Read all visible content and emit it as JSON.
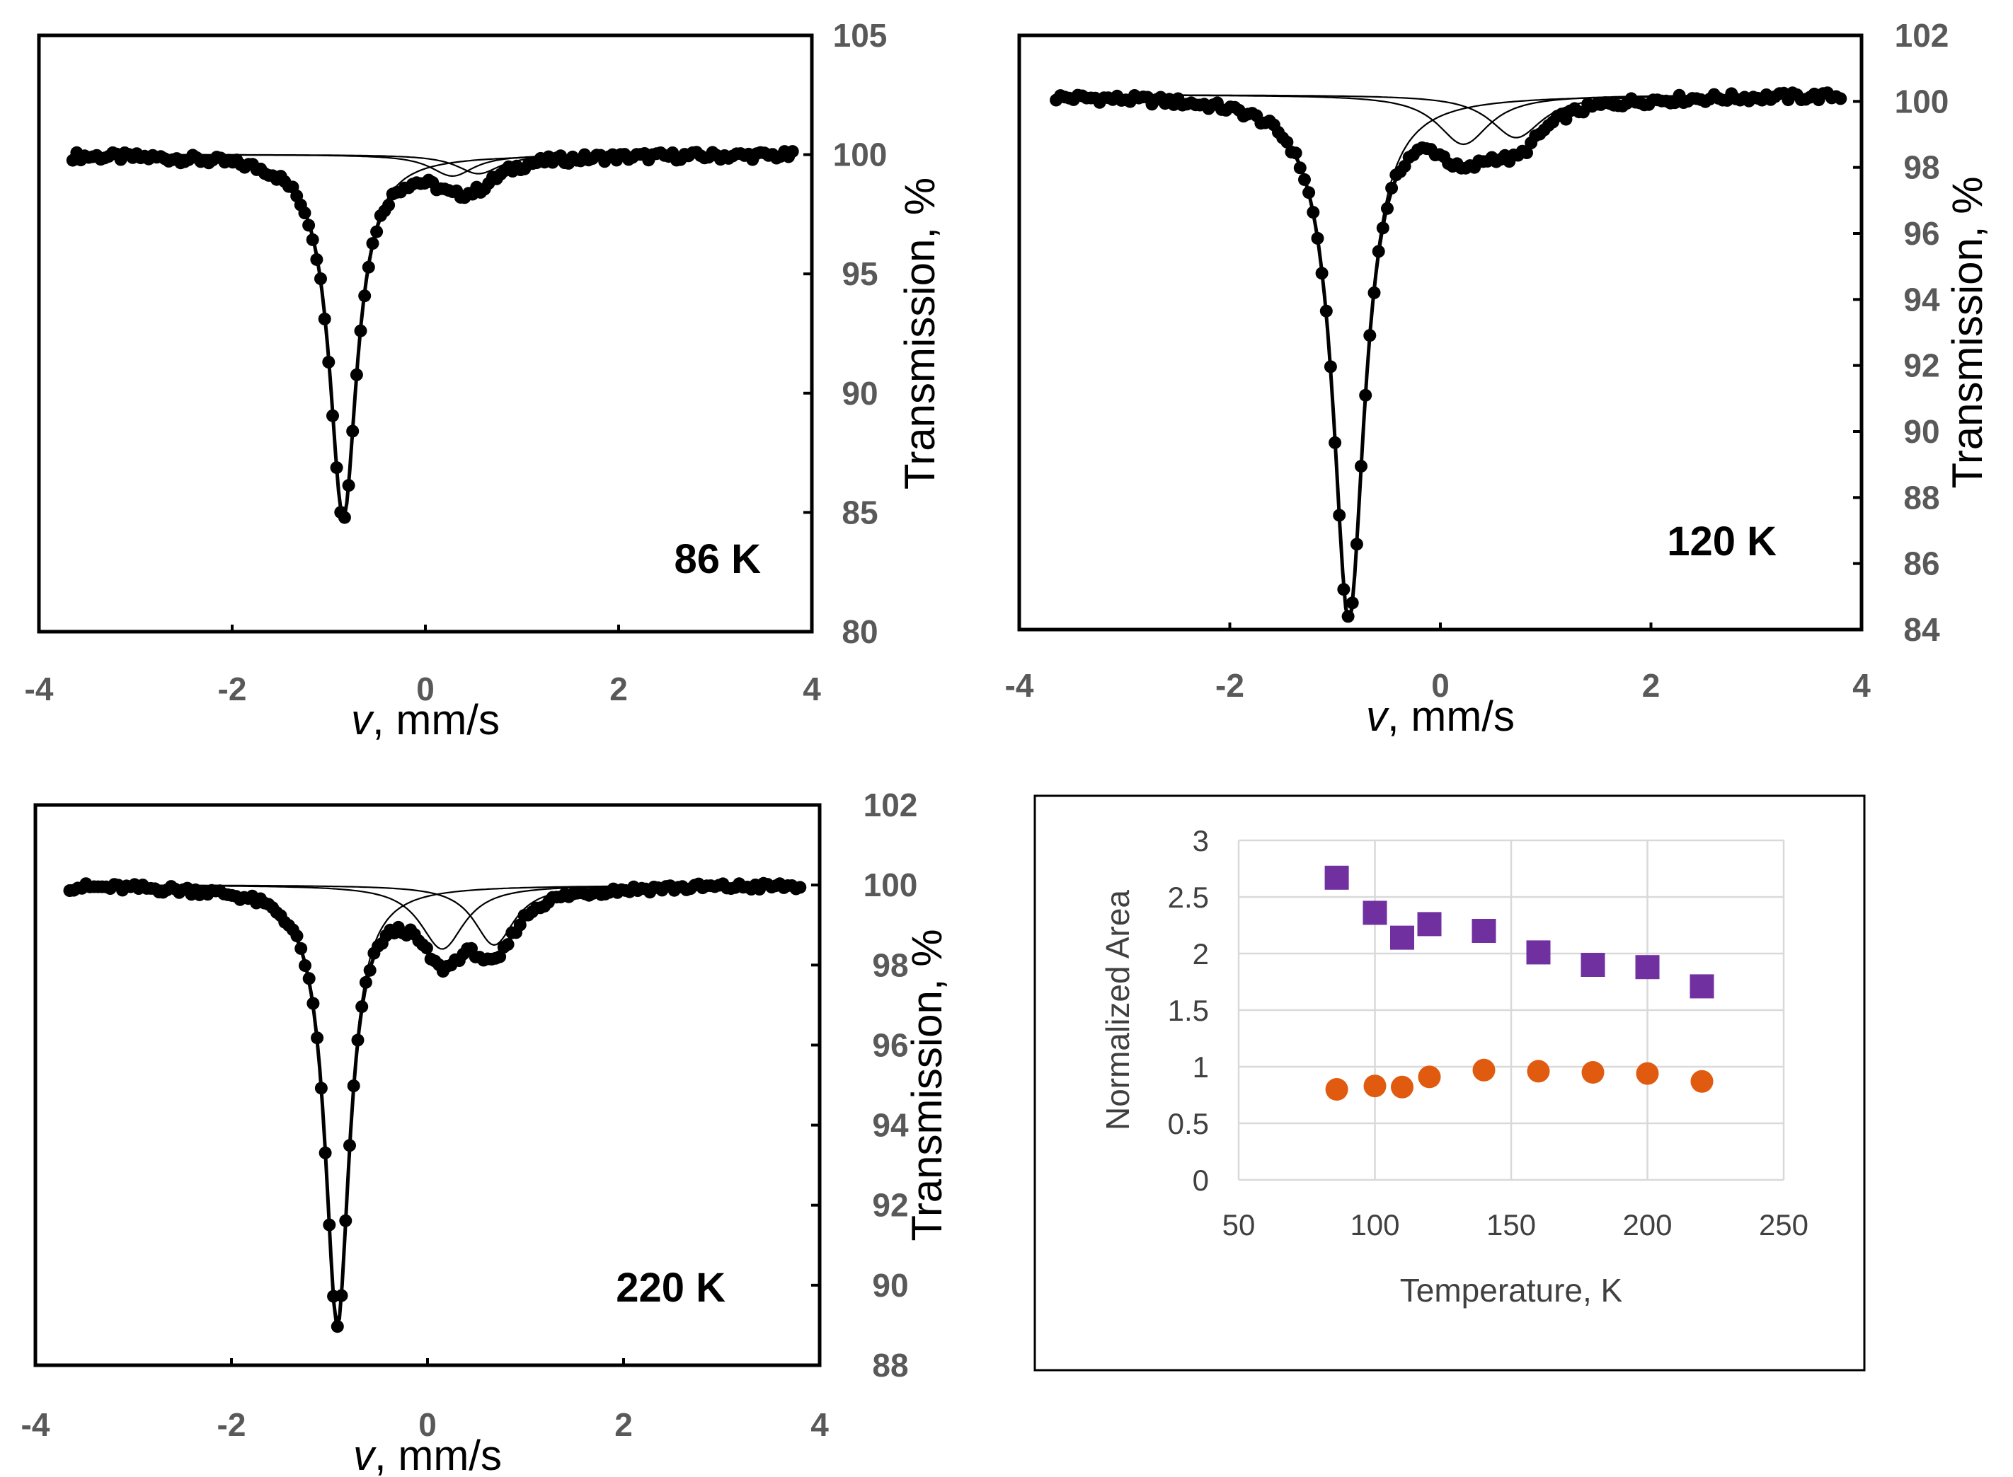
{
  "chart_data": [
    {
      "type": "line",
      "title": "86 K",
      "temperature_label": "86 K",
      "xlabel_var": "v",
      "xlabel_rest": ", mm/s",
      "ylabel": "Transmission, %",
      "xlim": [
        -4,
        4
      ],
      "ylim": [
        80,
        105
      ],
      "xticks": [
        "-4",
        "-2",
        "0",
        "2",
        "4"
      ],
      "yticks": [
        "80",
        "85",
        "90",
        "95",
        "100",
        "105"
      ],
      "baseline": 100,
      "peaks": [
        {
          "center": -0.85,
          "depth": 15.2,
          "width": 0.34
        },
        {
          "center": 0.28,
          "depth": 0.9,
          "width": 0.55
        },
        {
          "center": 0.55,
          "depth": 0.8,
          "width": 0.55
        }
      ],
      "series": [
        {
          "name": "experimental",
          "style": "points"
        },
        {
          "name": "fit-total",
          "style": "line"
        },
        {
          "name": "component-1",
          "style": "thin-line"
        },
        {
          "name": "component-2",
          "style": "thin-line"
        },
        {
          "name": "component-3",
          "style": "thin-line"
        }
      ]
    },
    {
      "type": "line",
      "title": "120 K",
      "temperature_label": "120 K",
      "xlabel_var": "v",
      "xlabel_rest": ", mm/s",
      "ylabel": "Transmission, %",
      "xlim": [
        -4,
        4
      ],
      "ylim": [
        84,
        102
      ],
      "xticks": [
        "-4",
        "-2",
        "0",
        "2",
        "4"
      ],
      "yticks": [
        "84",
        "86",
        "88",
        "90",
        "92",
        "94",
        "96",
        "98",
        "100",
        "102"
      ],
      "baseline": 100.2,
      "peaks": [
        {
          "center": -0.87,
          "depth": 15.8,
          "width": 0.36
        },
        {
          "center": 0.22,
          "depth": 1.5,
          "width": 0.6
        },
        {
          "center": 0.72,
          "depth": 1.3,
          "width": 0.6
        }
      ],
      "series": [
        {
          "name": "experimental",
          "style": "points"
        },
        {
          "name": "fit-total",
          "style": "line"
        },
        {
          "name": "component-1",
          "style": "thin-line"
        },
        {
          "name": "component-2",
          "style": "thin-line"
        },
        {
          "name": "component-3",
          "style": "thin-line"
        }
      ]
    },
    {
      "type": "line",
      "title": "220 K",
      "temperature_label": "220 K",
      "xlabel_var": "v",
      "xlabel_rest": ", mm/s",
      "ylabel": "Transmission, %",
      "xlim": [
        -4,
        4
      ],
      "ylim": [
        88,
        102
      ],
      "xticks": [
        "-4",
        "-2",
        "0",
        "2",
        "4"
      ],
      "yticks": [
        "88",
        "90",
        "92",
        "94",
        "96",
        "98",
        "100",
        "102"
      ],
      "baseline": 100,
      "peaks": [
        {
          "center": -0.92,
          "depth": 10.9,
          "width": 0.3
        },
        {
          "center": 0.15,
          "depth": 1.6,
          "width": 0.55
        },
        {
          "center": 0.68,
          "depth": 1.5,
          "width": 0.5
        }
      ],
      "series": [
        {
          "name": "experimental",
          "style": "points"
        },
        {
          "name": "fit-total",
          "style": "line"
        },
        {
          "name": "component-1",
          "style": "thin-line"
        },
        {
          "name": "component-2",
          "style": "thin-line"
        },
        {
          "name": "component-3",
          "style": "thin-line"
        }
      ]
    },
    {
      "type": "scatter",
      "title": "",
      "xlabel": "Temperature, K",
      "ylabel": "Normalized Area",
      "xlim": [
        50,
        250
      ],
      "ylim": [
        0,
        3
      ],
      "xticks": [
        "50",
        "100",
        "150",
        "200",
        "250"
      ],
      "yticks": [
        "0",
        "0.5",
        "1",
        "1.5",
        "2",
        "2.5",
        "3"
      ],
      "grid": true,
      "series": [
        {
          "name": "squares",
          "marker": "square",
          "color": "#7030A0",
          "points": [
            [
              86,
              2.67
            ],
            [
              100,
              2.36
            ],
            [
              110,
              2.14
            ],
            [
              120,
              2.26
            ],
            [
              140,
              2.2
            ],
            [
              160,
              2.01
            ],
            [
              180,
              1.9
            ],
            [
              200,
              1.88
            ],
            [
              220,
              1.71
            ]
          ]
        },
        {
          "name": "circles",
          "marker": "circle",
          "color": "#E05A10",
          "points": [
            [
              86,
              0.8
            ],
            [
              100,
              0.83
            ],
            [
              110,
              0.82
            ],
            [
              120,
              0.91
            ],
            [
              140,
              0.97
            ],
            [
              160,
              0.96
            ],
            [
              180,
              0.95
            ],
            [
              200,
              0.94
            ],
            [
              220,
              0.87
            ]
          ]
        }
      ]
    }
  ]
}
